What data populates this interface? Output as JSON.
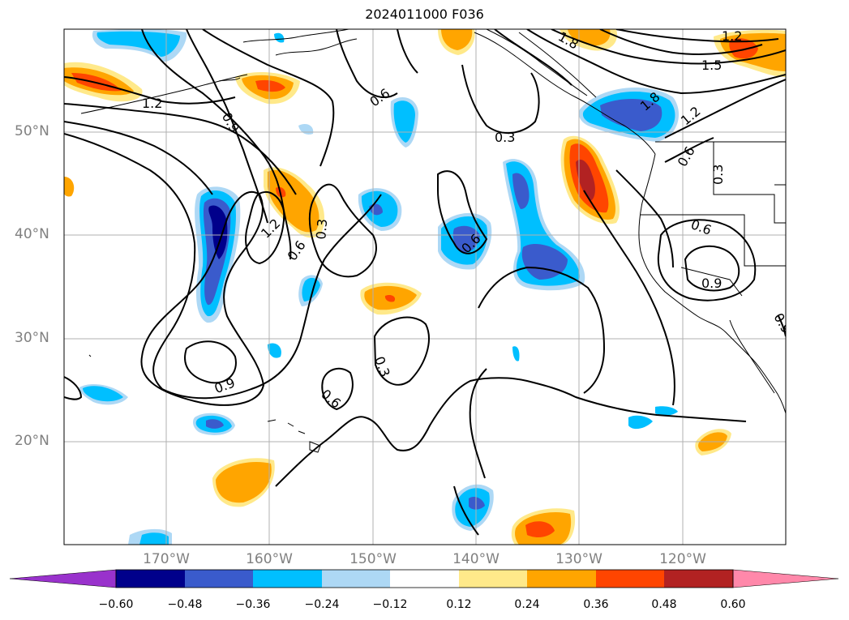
{
  "title": "2024011000 F036",
  "map": {
    "lat_labels": [
      "50°N",
      "40°N",
      "30°N",
      "20°N"
    ],
    "lon_labels": [
      "170°W",
      "160°W",
      "150°W",
      "140°W",
      "130°W",
      "120°W"
    ],
    "contour_labels": [
      "1.2",
      "0.9",
      "0.6",
      "0.3",
      "1.8",
      "1.5",
      "1.2",
      "1.8",
      "1.2",
      "0.6",
      "0.3",
      "0.6",
      "0.9",
      "0.9",
      "1.2",
      "0.6",
      "0.3",
      "0.6",
      "0.3",
      "0.6",
      "0.9",
      "0.9",
      "0.6",
      "0.3",
      "0.6"
    ]
  },
  "colorbar": {
    "ticks": [
      "−0.60",
      "−0.48",
      "−0.36",
      "−0.24",
      "−0.12",
      "0.12",
      "0.24",
      "0.36",
      "0.48",
      "0.60"
    ],
    "colors": {
      "lt_-0.60": "#9932cc",
      "-0.60_-0.48": "#00008b",
      "-0.48_-0.36": "#3a5bcc",
      "-0.36_-0.24": "#00bfff",
      "-0.24_-0.12": "#add8f5",
      "-0.12_0.12": "#ffffff",
      "0.12_0.24": "#ffe98a",
      "0.24_0.36": "#ffa500",
      "0.36_0.48": "#ff4500",
      "0.48_0.60": "#b22222",
      "gt_0.60": "#ff88aa"
    }
  }
}
